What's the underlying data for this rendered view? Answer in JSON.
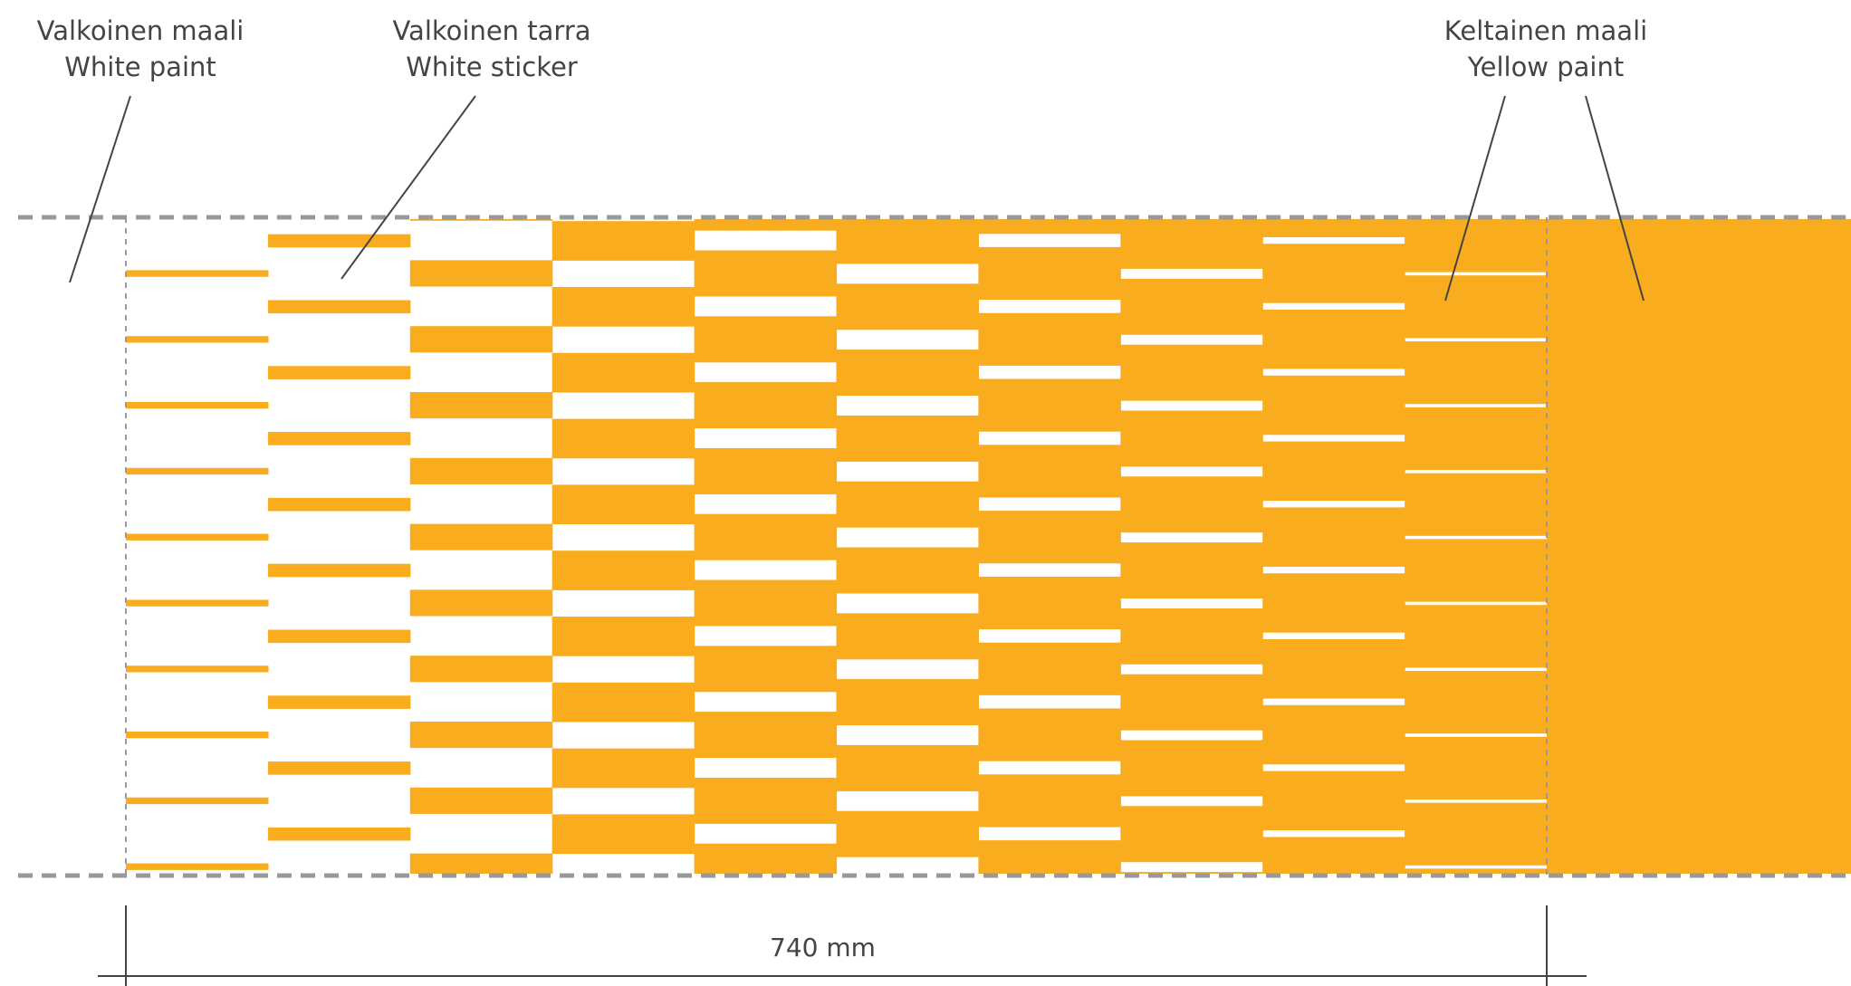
{
  "labels": {
    "white_paint": {
      "fi": "Valkoinen maali",
      "en": "White paint"
    },
    "white_sticker": {
      "fi": "Valkoinen tarra",
      "en": "White sticker"
    },
    "yellow_paint": {
      "fi": "Keltainen maali",
      "en": "Yellow paint"
    }
  },
  "dimension": {
    "text": "740 mm"
  },
  "colors": {
    "yellow": "#F9AC1E",
    "white": "#FFFFFF",
    "guide": "#999999",
    "leader": "#444444"
  },
  "transition": {
    "stripe_count": 10,
    "yellow_fractions": [
      0.1,
      0.2,
      0.4,
      0.6,
      0.7,
      0.7,
      0.8,
      0.85,
      0.9,
      0.95
    ]
  }
}
